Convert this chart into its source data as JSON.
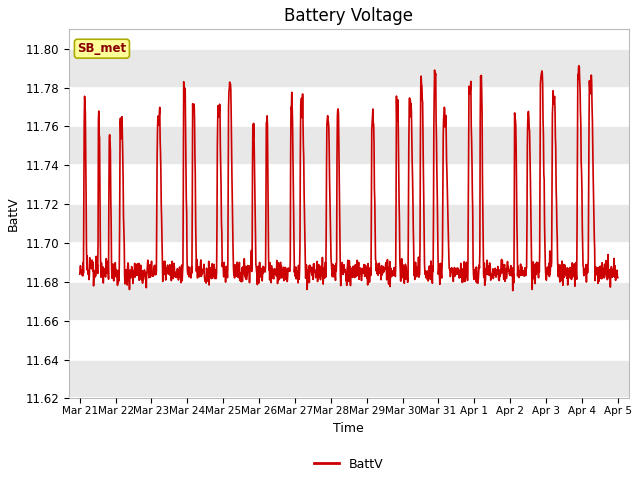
{
  "title": "Battery Voltage",
  "xlabel": "Time",
  "ylabel": "BattV",
  "legend_label": "BattV",
  "legend_box_label": "SB_met",
  "ylim": [
    11.62,
    11.81
  ],
  "yticks": [
    11.62,
    11.64,
    11.66,
    11.68,
    11.7,
    11.72,
    11.74,
    11.76,
    11.78,
    11.8
  ],
  "line_color": "#CC0000",
  "line_width": 1.2,
  "band_color": "#E8E8E8",
  "plot_bg": "#F0F0F0",
  "grid_color": "#FFFFFF",
  "box_fill": "#FFFF99",
  "box_edge": "#AAAA00",
  "box_text_color": "#880000",
  "x_tick_labels": [
    "Mar 21",
    "Mar 22",
    "Mar 23",
    "Mar 24",
    "Mar 25",
    "Mar 26",
    "Mar 27",
    "Mar 28",
    "Mar 29",
    "Mar 30",
    "Mar 31",
    "Apr 1",
    "Apr 2",
    "Apr 3",
    "Apr 4",
    "Apr 5"
  ],
  "x_tick_positions": [
    0,
    1,
    2,
    3,
    4,
    5,
    6,
    7,
    8,
    9,
    10,
    11,
    12,
    13,
    14,
    15
  ],
  "xlim": [
    -0.3,
    15.3
  ]
}
